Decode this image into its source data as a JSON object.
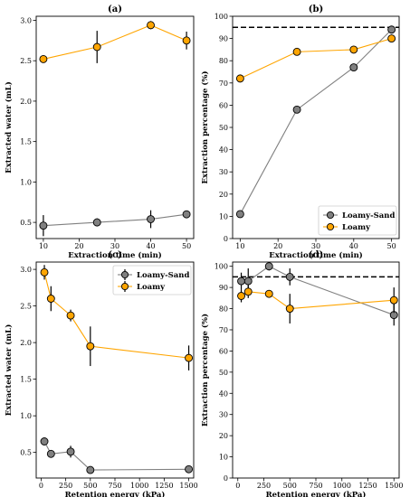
{
  "chart_data": [
    {
      "type": "line",
      "title": "(a)",
      "xlabel": "Extraction time (min)",
      "ylabel": "Extracted water (mL)",
      "xlim": [
        8,
        52
      ],
      "ylim": [
        0.3,
        3.05
      ],
      "xticks": [
        "10",
        "20",
        "30",
        "40",
        "50"
      ],
      "yticks": [
        "0.5",
        "1.0",
        "1.5",
        "2.0",
        "2.5",
        "3.0"
      ],
      "grid": false,
      "series": [
        {
          "name": "Loamy-Sand",
          "color": "#808080",
          "x": [
            10,
            25,
            40,
            50
          ],
          "y": [
            0.46,
            0.5,
            0.54,
            0.6
          ],
          "err": [
            0.13,
            0.05,
            0.11,
            0.04
          ]
        },
        {
          "name": "Loamy",
          "color": "#ffa500",
          "x": [
            10,
            25,
            40,
            50
          ],
          "y": [
            2.52,
            2.67,
            2.94,
            2.75
          ],
          "err": [
            0.04,
            0.2,
            0.05,
            0.11
          ]
        }
      ]
    },
    {
      "type": "line",
      "title": "(b)",
      "xlabel": "Extraction time (min)",
      "ylabel": "Extraction percentage (%)",
      "xlim": [
        8,
        52
      ],
      "ylim": [
        0,
        100
      ],
      "xticks": [
        "10",
        "20",
        "30",
        "40",
        "50"
      ],
      "yticks": [
        "0",
        "10",
        "20",
        "30",
        "40",
        "50",
        "60",
        "70",
        "80",
        "90",
        "100"
      ],
      "grid": false,
      "reference_line": 95,
      "legend": "bottom-right",
      "series": [
        {
          "name": "Loamy-Sand",
          "color": "#808080",
          "x": [
            10,
            25,
            40,
            50
          ],
          "y": [
            11,
            58,
            77,
            94
          ],
          "err": [
            0,
            0,
            0,
            0
          ]
        },
        {
          "name": "Loamy",
          "color": "#ffa500",
          "x": [
            10,
            25,
            40,
            50
          ],
          "y": [
            72,
            84,
            85,
            90
          ],
          "err": [
            0,
            0,
            0,
            0
          ]
        }
      ]
    },
    {
      "type": "line",
      "title": "(c)",
      "xlabel": "Retention energy (kPa)",
      "ylabel": "Extracted water (mL)",
      "xlim": [
        -50,
        1550
      ],
      "ylim": [
        0.15,
        3.1
      ],
      "xticks": [
        "0",
        "250",
        "500",
        "750",
        "1000",
        "1250",
        "1500"
      ],
      "yticks": [
        "0.5",
        "1.0",
        "1.5",
        "2.0",
        "2.5",
        "3.0"
      ],
      "grid": false,
      "legend": "top-right",
      "series": [
        {
          "name": "Loamy-Sand",
          "color": "#808080",
          "x": [
            33,
            100,
            300,
            500,
            1500
          ],
          "y": [
            0.65,
            0.48,
            0.51,
            0.26,
            0.27
          ],
          "err": [
            0.03,
            0.03,
            0.08,
            0.02,
            0.03
          ]
        },
        {
          "name": "Loamy",
          "color": "#ffa500",
          "x": [
            33,
            100,
            300,
            500,
            1500
          ],
          "y": [
            2.96,
            2.6,
            2.37,
            1.95,
            1.79
          ],
          "err": [
            0.1,
            0.17,
            0.08,
            0.27,
            0.17
          ]
        }
      ]
    },
    {
      "type": "line",
      "title": "(d)",
      "xlabel": "Retention energy (kPa)",
      "ylabel": "Extraction percentage (%)",
      "xlim": [
        -50,
        1550
      ],
      "ylim": [
        0,
        102
      ],
      "xticks": [
        "0",
        "250",
        "500",
        "750",
        "1000",
        "1250",
        "1500"
      ],
      "yticks": [
        "0",
        "10",
        "20",
        "30",
        "40",
        "50",
        "60",
        "70",
        "80",
        "90",
        "100"
      ],
      "grid": false,
      "reference_line": 95,
      "series": [
        {
          "name": "Loamy-Sand",
          "color": "#808080",
          "x": [
            33,
            100,
            300,
            500,
            1500
          ],
          "y": [
            93,
            93,
            100,
            95,
            77
          ],
          "err": [
            4,
            6,
            2,
            4,
            5
          ]
        },
        {
          "name": "Loamy",
          "color": "#ffa500",
          "x": [
            33,
            100,
            300,
            500,
            1500
          ],
          "y": [
            86,
            88,
            87,
            80,
            84
          ],
          "err": [
            3,
            3,
            1,
            7,
            6
          ]
        }
      ]
    }
  ]
}
